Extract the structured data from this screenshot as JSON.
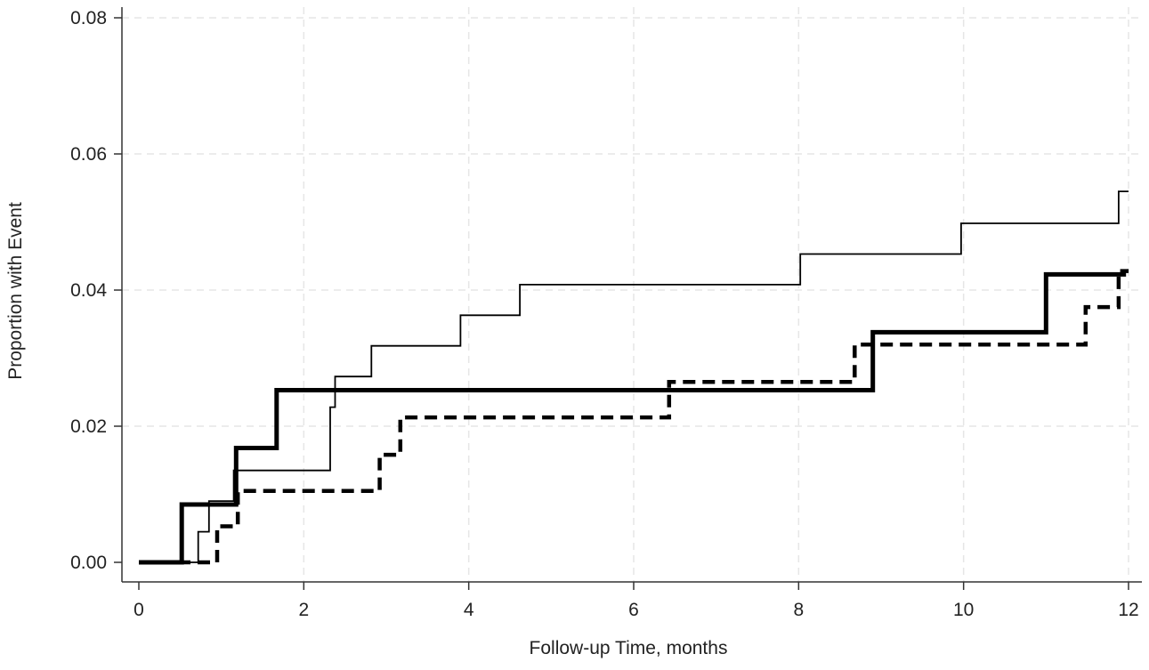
{
  "chart_data": {
    "type": "line",
    "title": "",
    "xlabel": "Follow-up Time, months",
    "ylabel": "Proportion with Event",
    "xlim": [
      0,
      12
    ],
    "ylim": [
      0,
      0.08
    ],
    "x_ticks": [
      0,
      2,
      4,
      6,
      8,
      10,
      12
    ],
    "y_ticks": [
      0.0,
      0.02,
      0.04,
      0.06,
      0.08
    ],
    "x_tick_labels": [
      "0",
      "2",
      "4",
      "6",
      "8",
      "10",
      "12"
    ],
    "y_tick_labels": [
      "0.00",
      "0.02",
      "0.04",
      "0.06",
      "0.08"
    ],
    "grid": true,
    "legend": "none",
    "step": true,
    "series": [
      {
        "style": "solid-thick",
        "color": "#000000",
        "points": [
          [
            0,
            0
          ],
          [
            0.52,
            0.0085
          ],
          [
            1.18,
            0.0168
          ],
          [
            1.67,
            0.0253
          ],
          [
            8.9,
            0.0338
          ],
          [
            11.0,
            0.0423
          ],
          [
            11.97,
            0.0423
          ]
        ]
      },
      {
        "style": "solid-thin",
        "color": "#000000",
        "points": [
          [
            0,
            0
          ],
          [
            0.72,
            0.0045
          ],
          [
            0.85,
            0.009
          ],
          [
            1.15,
            0.0135
          ],
          [
            2.32,
            0.0228
          ],
          [
            2.38,
            0.0273
          ],
          [
            2.82,
            0.0318
          ],
          [
            3.9,
            0.0363
          ],
          [
            4.62,
            0.0408
          ],
          [
            8.02,
            0.0453
          ],
          [
            9.97,
            0.0498
          ],
          [
            11.88,
            0.0545
          ],
          [
            12.0,
            0.0545
          ]
        ]
      },
      {
        "style": "dashed-thick",
        "color": "#000000",
        "points": [
          [
            0,
            0
          ],
          [
            0.95,
            0.0053
          ],
          [
            1.2,
            0.0105
          ],
          [
            2.92,
            0.0158
          ],
          [
            3.17,
            0.0213
          ],
          [
            6.43,
            0.0265
          ],
          [
            8.68,
            0.032
          ],
          [
            11.48,
            0.0375
          ],
          [
            11.88,
            0.0428
          ],
          [
            12.0,
            0.0428
          ]
        ]
      }
    ]
  }
}
